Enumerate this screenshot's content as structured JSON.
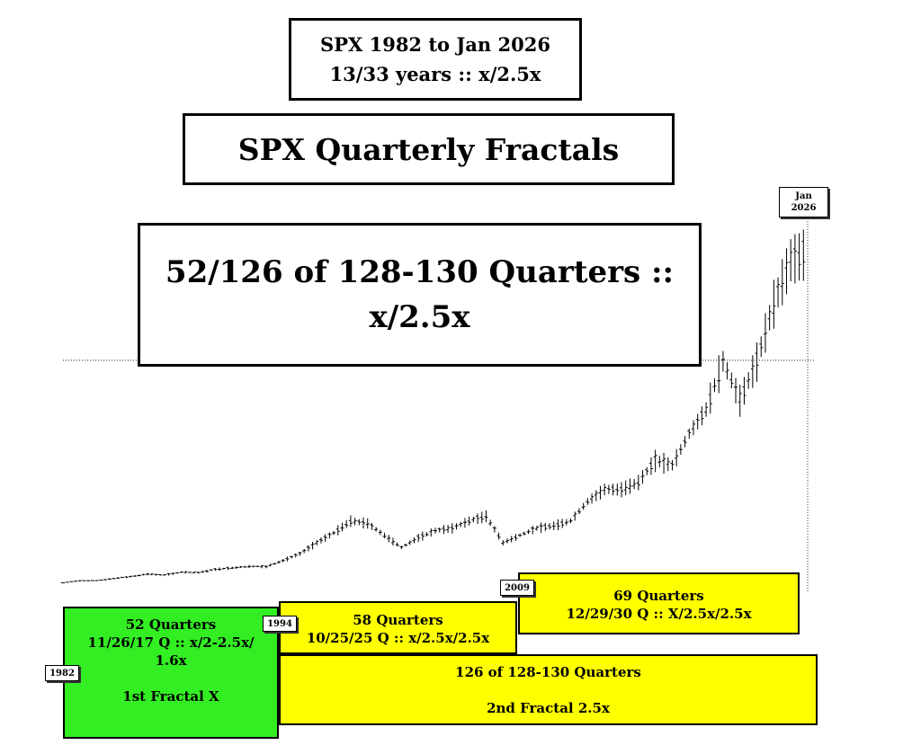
{
  "header": {
    "line1": "SPX  1982 to Jan 2026",
    "line2": "13/33 years :: x/2.5x"
  },
  "title": "SPX Quarterly Fractals",
  "headline": {
    "line1": "52/126 of 128-130 Quarters ::",
    "line2": "x/2.5x"
  },
  "panels": {
    "p52": {
      "color": "#33ee22",
      "lines": [
        "52 Quarters",
        "11/26/17 Q :: x/2-2.5x/",
        "1.6x",
        "",
        "1st Fractal X"
      ]
    },
    "p58": {
      "color": "#ffff00",
      "lines": [
        "58 Quarters",
        "10/25/25 Q :: x/2.5x/2.5x"
      ]
    },
    "p69": {
      "color": "#ffff00",
      "lines": [
        "69 Quarters",
        "12/29/30 Q :: X/2.5x/2.5x"
      ]
    },
    "p126": {
      "color": "#ffff00",
      "lines": [
        "126 of 128-130 Quarters",
        "",
        "2nd Fractal  2.5x"
      ]
    }
  },
  "tags": {
    "t1982": "1982",
    "t1994": "1994",
    "t2009": "2009",
    "t2026_line1": "Jan",
    "t2026_line2": "2026"
  },
  "chart_data": {
    "type": "ohlc",
    "series": [
      {
        "x": [
          1982,
          1983,
          1984,
          1985,
          1986,
          1987,
          1988,
          1989,
          1990,
          1991,
          1992,
          1993,
          1994,
          1995,
          1996,
          1997,
          1998,
          1999,
          2000,
          2001,
          2002,
          2003,
          2004,
          2005,
          2006,
          2007,
          2008,
          2009,
          2010,
          2011,
          2012,
          2013,
          2014,
          2015,
          2016,
          2017,
          2018,
          2019,
          2020,
          2021,
          2022,
          2023,
          2024,
          2025,
          2026
        ],
        "values": [
          120,
          165,
          165,
          210,
          250,
          300,
          280,
          340,
          330,
          400,
          430,
          460,
          455,
          580,
          720,
          950,
          1150,
          1400,
          1350,
          1100,
          850,
          1050,
          1200,
          1250,
          1400,
          1500,
          950,
          1100,
          1250,
          1300,
          1400,
          1800,
          2050,
          2050,
          2200,
          2650,
          2550,
          3200,
          3700,
          4700,
          3900,
          4700,
          5900,
          6800,
          6950
        ]
      }
    ],
    "reference_line": 4700,
    "ylim": [
      0,
      7400
    ],
    "xlim": [
      1982,
      2026
    ],
    "grid": false,
    "legend": "none"
  }
}
